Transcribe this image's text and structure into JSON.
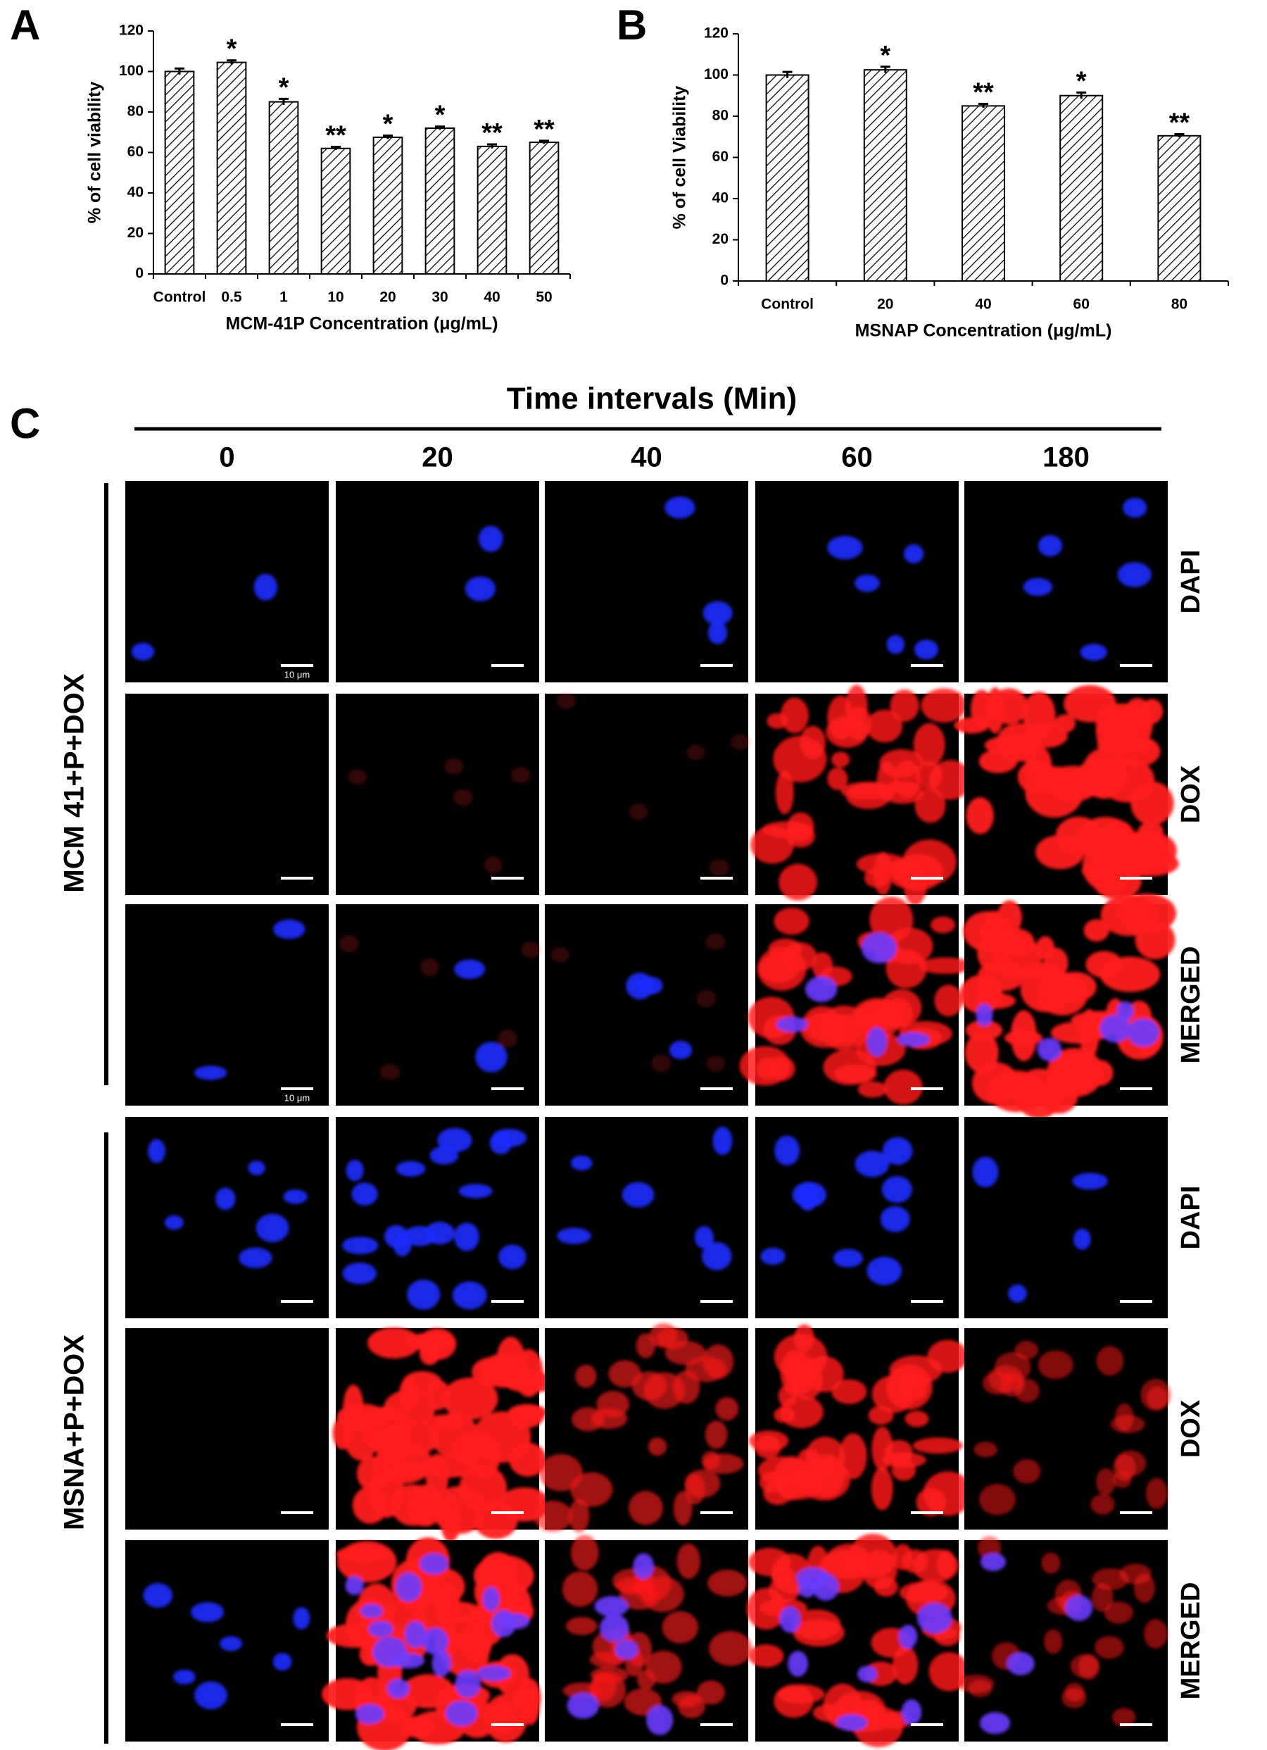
{
  "panel_labels": [
    "A",
    "B",
    "C"
  ],
  "chart_data": [
    {
      "type": "bar",
      "xlabel": "MCM-41P Concentration (μg/mL)",
      "ylabel": "% of cell viability",
      "categories": [
        "Control",
        "0.5",
        "1",
        "10",
        "20",
        "30",
        "40",
        "50"
      ],
      "values": [
        100,
        104.5,
        85,
        62,
        67.5,
        72,
        63,
        65
      ],
      "errors": [
        1.5,
        1,
        1.5,
        0.8,
        0.8,
        0.8,
        1,
        0.8
      ],
      "annotations": [
        null,
        "*",
        "*",
        "**",
        "*",
        "*",
        "**",
        "**"
      ],
      "ylim": [
        0,
        120
      ],
      "yticks": [
        0,
        20,
        40,
        60,
        80,
        100,
        120
      ]
    },
    {
      "type": "bar",
      "xlabel": "MSNAP Concentration (μg/mL)",
      "ylabel": "% of cell Viability",
      "categories": [
        "Control",
        "20",
        "40",
        "60",
        "80"
      ],
      "values": [
        100,
        102.5,
        85,
        90,
        70.5
      ],
      "errors": [
        1.5,
        1.5,
        1,
        1.5,
        0.8
      ],
      "annotations": [
        null,
        "*",
        "**",
        "*",
        "**"
      ],
      "ylim": [
        0,
        120
      ],
      "yticks": [
        0,
        20,
        40,
        60,
        80,
        100,
        120
      ]
    }
  ],
  "figure_c": {
    "title": "Time intervals (Min)",
    "time_points": [
      "0",
      "20",
      "40",
      "60",
      "180"
    ],
    "groups": [
      {
        "name": "MCM 41+P+DOX",
        "rows": [
          "DAPI",
          "DOX",
          "MERGED"
        ]
      },
      {
        "name": "MSNA+P+DOX",
        "rows": [
          "DAPI",
          "DOX",
          "MERGED"
        ]
      }
    ],
    "scale_bar_label": "10 μm"
  }
}
